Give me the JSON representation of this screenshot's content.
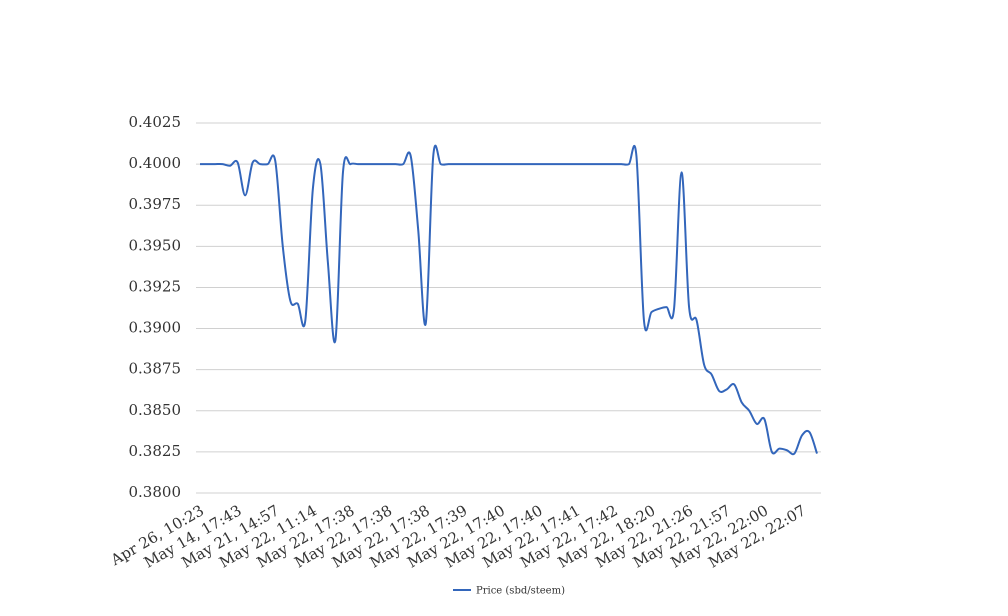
{
  "chart_data": {
    "type": "line",
    "categories": [
      "Apr 26, 10:23",
      null,
      null,
      null,
      null,
      "May 14, 17:43",
      null,
      null,
      null,
      null,
      "May 21, 14:57",
      null,
      null,
      null,
      null,
      "May 22, 11:14",
      null,
      null,
      null,
      null,
      "May 22, 17:38",
      null,
      null,
      null,
      null,
      "May 22, 17:38",
      null,
      null,
      null,
      null,
      "May 22, 17:38",
      null,
      null,
      null,
      null,
      "May 22, 17:39",
      null,
      null,
      null,
      null,
      "May 22, 17:40",
      null,
      null,
      null,
      null,
      "May 22, 17:40",
      null,
      null,
      null,
      null,
      "May 22, 17:41",
      null,
      null,
      null,
      null,
      "May 22, 17:42",
      null,
      null,
      null,
      null,
      "May 22, 18:20",
      null,
      null,
      null,
      null,
      "May 22, 21:26",
      null,
      null,
      null,
      null,
      "May 22, 21:57",
      null,
      null,
      null,
      null,
      "May 22, 22:00",
      null,
      null,
      null,
      null,
      "May 22, 22:07",
      null,
      null
    ],
    "series": [
      {
        "name": "Price (sbd/steem)",
        "color": "#3366bb",
        "values": [
          0.4,
          0.4,
          0.4,
          0.4,
          0.3999,
          0.4001,
          0.3981,
          0.4001,
          0.4,
          0.4,
          0.4002,
          0.395,
          0.3917,
          0.3915,
          0.3905,
          0.3985,
          0.4,
          0.394,
          0.3893,
          0.3995,
          0.4,
          0.4,
          0.4,
          0.4,
          0.4,
          0.4,
          0.4,
          0.4,
          0.4005,
          0.396,
          0.3903,
          0.4005,
          0.4,
          0.4,
          0.4,
          0.4,
          0.4,
          0.4,
          0.4,
          0.4,
          0.4,
          0.4,
          0.4,
          0.4,
          0.4,
          0.4,
          0.4,
          0.4,
          0.4,
          0.4,
          0.4,
          0.4,
          0.4,
          0.4,
          0.4,
          0.4,
          0.4,
          0.4,
          0.4005,
          0.3905,
          0.391,
          0.3912,
          0.3913,
          0.3912,
          0.3995,
          0.3913,
          0.3905,
          0.3878,
          0.3872,
          0.3862,
          0.3863,
          0.3866,
          0.3855,
          0.385,
          0.3842,
          0.3845,
          0.3825,
          0.3827,
          0.3826,
          0.3824,
          0.3835,
          0.3837,
          0.3824
        ]
      }
    ],
    "ylim": [
      0.38,
      0.4025
    ],
    "yticks": [
      {
        "value": 0.38,
        "label": "0.3800"
      },
      0.3825,
      {
        "value": 0.385,
        "label": "0.3850"
      },
      0.3875,
      {
        "value": 0.39,
        "label": "0.3900"
      },
      0.3925,
      {
        "value": 0.395,
        "label": "0.3950"
      },
      0.3975,
      {
        "value": 0.4,
        "label": "0.4000"
      },
      0.4025
    ],
    "grid": true,
    "legend": "bottom"
  }
}
